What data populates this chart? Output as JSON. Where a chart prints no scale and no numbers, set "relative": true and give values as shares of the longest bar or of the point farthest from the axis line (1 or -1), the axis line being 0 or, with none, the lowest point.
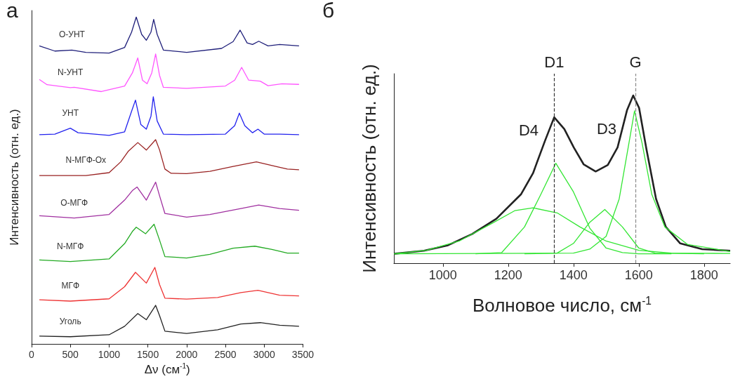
{
  "chart_data": [
    {
      "type": "line",
      "title": "а",
      "xlabel": "Δν (см$^{-1}$)",
      "ylabel": "Интенсивность (отн. ед.)",
      "relative": true,
      "xlim": [
        0,
        3500
      ],
      "xticks": [
        0,
        500,
        1000,
        1500,
        2000,
        2500,
        3000,
        3500
      ],
      "grid": false,
      "legend": false,
      "series": [
        {
          "name": "О-УНТ",
          "color": "#1f1f7a",
          "x": [
            100,
            300,
            520,
            700,
            1000,
            1200,
            1290,
            1350,
            1420,
            1480,
            1540,
            1575,
            1620,
            1700,
            2000,
            2450,
            2600,
            2690,
            2780,
            2850,
            2930,
            3050,
            3200,
            3450
          ],
          "values": [
            0.912,
            0.896,
            0.899,
            0.892,
            0.89,
            0.907,
            0.954,
            1.0,
            0.947,
            0.929,
            0.954,
            0.993,
            0.947,
            0.899,
            0.892,
            0.904,
            0.925,
            0.96,
            0.921,
            0.916,
            0.926,
            0.912,
            0.916,
            0.912
          ]
        },
        {
          "name": "N-УНТ",
          "color": "#ff55ff",
          "x": [
            100,
            200,
            500,
            550,
            900,
            1200,
            1300,
            1370,
            1430,
            1490,
            1550,
            1600,
            1650,
            1700,
            2000,
            2500,
            2620,
            2710,
            2800,
            2950,
            3050,
            3230,
            3450
          ],
          "values": [
            0.809,
            0.793,
            0.784,
            0.785,
            0.772,
            0.789,
            0.829,
            0.875,
            0.807,
            0.796,
            0.829,
            0.887,
            0.822,
            0.785,
            0.782,
            0.789,
            0.807,
            0.846,
            0.807,
            0.804,
            0.79,
            0.796,
            0.794
          ]
        },
        {
          "name": "УНТ",
          "color": "#2222ee",
          "x": [
            100,
            300,
            500,
            600,
            1000,
            1200,
            1290,
            1340,
            1410,
            1480,
            1540,
            1570,
            1620,
            1700,
            2000,
            2500,
            2620,
            2680,
            2750,
            2850,
            2920,
            3000,
            3200,
            3450
          ],
          "values": [
            0.64,
            0.642,
            0.66,
            0.646,
            0.638,
            0.649,
            0.712,
            0.746,
            0.671,
            0.657,
            0.697,
            0.756,
            0.682,
            0.642,
            0.64,
            0.642,
            0.668,
            0.706,
            0.668,
            0.646,
            0.657,
            0.642,
            0.642,
            0.64
          ]
        },
        {
          "name": "N-МГФ-Ox",
          "color": "#992222",
          "x": [
            100,
            700,
            1000,
            1150,
            1250,
            1370,
            1480,
            1600,
            1650,
            1720,
            1800,
            2000,
            2300,
            2600,
            2900,
            3150,
            3300,
            3450
          ],
          "values": [
            0.515,
            0.515,
            0.524,
            0.557,
            0.59,
            0.616,
            0.593,
            0.625,
            0.594,
            0.535,
            0.522,
            0.521,
            0.528,
            0.543,
            0.557,
            0.543,
            0.535,
            0.533
          ]
        },
        {
          "name": "О-МГФ",
          "color": "#a030a0",
          "x": [
            100,
            550,
            1000,
            1200,
            1300,
            1360,
            1480,
            1600,
            1650,
            1720,
            2000,
            2300,
            2700,
            2930,
            3200,
            3450
          ],
          "values": [
            0.392,
            0.385,
            0.396,
            0.44,
            0.469,
            0.48,
            0.44,
            0.495,
            0.454,
            0.399,
            0.388,
            0.396,
            0.414,
            0.425,
            0.414,
            0.409
          ]
        },
        {
          "name": "N-МГФ",
          "color": "#22aa22",
          "x": [
            100,
            500,
            1000,
            1200,
            1300,
            1350,
            1470,
            1580,
            1650,
            1720,
            2000,
            2300,
            2600,
            2880,
            3100,
            3300,
            3450
          ],
          "values": [
            0.257,
            0.252,
            0.26,
            0.307,
            0.344,
            0.357,
            0.337,
            0.366,
            0.318,
            0.267,
            0.263,
            0.274,
            0.293,
            0.299,
            0.289,
            0.278,
            0.278
          ]
        },
        {
          "name": "МГФ",
          "color": "#ee3333",
          "x": [
            100,
            500,
            1000,
            1200,
            1340,
            1480,
            1590,
            1650,
            1720,
            2000,
            2400,
            2700,
            2920,
            3200,
            3450
          ],
          "values": [
            0.135,
            0.131,
            0.138,
            0.175,
            0.219,
            0.186,
            0.234,
            0.182,
            0.14,
            0.137,
            0.142,
            0.157,
            0.164,
            0.149,
            0.147
          ]
        },
        {
          "name": "Уголь",
          "color": "#222222",
          "x": [
            100,
            500,
            1000,
            1200,
            1370,
            1480,
            1600,
            1650,
            1720,
            2000,
            2400,
            2700,
            2950,
            3200,
            3450
          ],
          "values": [
            0.024,
            0.022,
            0.028,
            0.054,
            0.093,
            0.074,
            0.118,
            0.087,
            0.039,
            0.032,
            0.043,
            0.061,
            0.065,
            0.057,
            0.054
          ]
        }
      ]
    },
    {
      "type": "line",
      "title": "б",
      "xlabel": "Волновое число, см$^{-1}$",
      "ylabel": "Интенсивность (отн. ед.)",
      "relative": true,
      "xlim": [
        850,
        1880
      ],
      "xticks": [
        1000,
        1200,
        1400,
        1600,
        1800
      ],
      "grid": false,
      "legend": false,
      "ref_lines": [
        {
          "axis": "x",
          "value": 1341,
          "label": "D1",
          "color": "#333333",
          "line_style": "dashed"
        },
        {
          "axis": "x",
          "value": 1590,
          "label": "G",
          "color": "#888888",
          "line_style": "dashed"
        }
      ],
      "annotations": [
        "D4",
        "D3"
      ],
      "series": [
        {
          "color": "#222222",
          "x": [
            850,
            942,
            1016,
            1090,
            1164,
            1239,
            1276,
            1313,
            1341,
            1372,
            1401,
            1431,
            1468,
            1505,
            1535,
            1564,
            1583,
            1601,
            1624,
            1653,
            1683,
            1727,
            1794,
            1880
          ],
          "values": [
            0.056,
            0.074,
            0.107,
            0.174,
            0.265,
            0.41,
            0.536,
            0.731,
            0.87,
            0.8,
            0.69,
            0.59,
            0.547,
            0.585,
            0.69,
            0.912,
            1,
            0.926,
            0.675,
            0.383,
            0.216,
            0.118,
            0.084,
            0.074
          ]
        },
        {
          "color": "#33e633",
          "x": [
            1100,
            1180,
            1250,
            1300,
            1346,
            1400,
            1450,
            1500,
            1550,
            1600,
            1700
          ],
          "values": [
            0.056,
            0.063,
            0.216,
            0.41,
            0.596,
            0.425,
            0.209,
            0.09,
            0.063,
            0.056,
            0.056
          ]
        },
        {
          "color": "#33e633",
          "x": [
            850,
            950,
            1050,
            1150,
            1220,
            1276,
            1350,
            1420,
            1500,
            1600,
            1700,
            1880
          ],
          "values": [
            0.056,
            0.077,
            0.132,
            0.237,
            0.313,
            0.33,
            0.3,
            0.216,
            0.132,
            0.077,
            0.06,
            0.058
          ]
        },
        {
          "color": "#33e633",
          "x": [
            1250,
            1350,
            1400,
            1450,
            1496,
            1550,
            1600,
            1650,
            1800
          ],
          "values": [
            0.056,
            0.06,
            0.118,
            0.244,
            0.32,
            0.216,
            0.09,
            0.06,
            0.056
          ]
        },
        {
          "color": "#33e633",
          "x": [
            850,
            1400,
            1450,
            1500,
            1540,
            1570,
            1587,
            1610,
            1640,
            1680,
            1750,
            1880
          ],
          "values": [
            0.056,
            0.06,
            0.084,
            0.16,
            0.383,
            0.717,
            0.909,
            0.717,
            0.41,
            0.216,
            0.111,
            0.07
          ]
        }
      ]
    }
  ]
}
